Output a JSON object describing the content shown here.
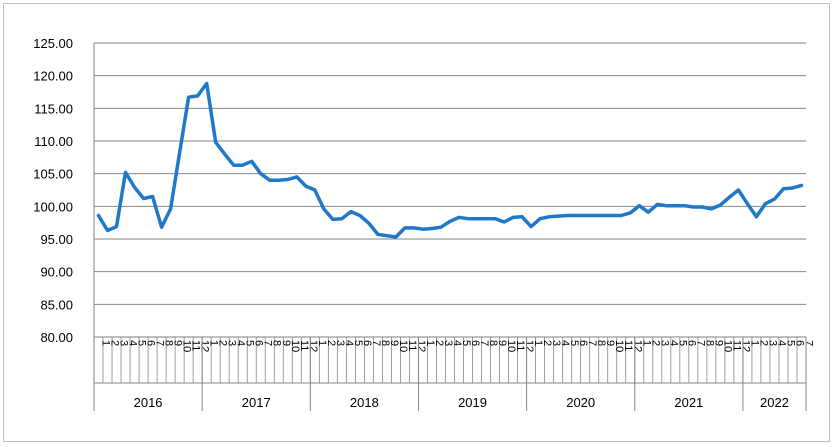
{
  "chart_data": {
    "type": "line",
    "title": "",
    "xlabel": "",
    "ylabel": "",
    "ylim": [
      80,
      125
    ],
    "yticks": [
      "80.00",
      "85.00",
      "90.00",
      "95.00",
      "100.00",
      "105.00",
      "110.00",
      "115.00",
      "120.00",
      "125.00"
    ],
    "grid": true,
    "legend": "none",
    "years": [
      {
        "label": "2016",
        "months": 12
      },
      {
        "label": "2017",
        "months": 12
      },
      {
        "label": "2018",
        "months": 12
      },
      {
        "label": "2019",
        "months": 12
      },
      {
        "label": "2020",
        "months": 12
      },
      {
        "label": "2021",
        "months": 12
      },
      {
        "label": "2022",
        "months": 7
      }
    ],
    "month_labels": [
      "1",
      "2",
      "3",
      "4",
      "5",
      "6",
      "7",
      "8",
      "9",
      "10",
      "11",
      "12"
    ],
    "series": [
      {
        "color": "#1f78c8",
        "values": [
          98.6,
          96.3,
          96.9,
          105.2,
          102.9,
          101.2,
          101.5,
          96.8,
          99.6,
          108.2,
          116.7,
          116.9,
          118.8,
          109.8,
          108.0,
          106.3,
          106.3,
          106.9,
          105.0,
          104.0,
          104.0,
          104.1,
          104.5,
          103.1,
          102.5,
          99.6,
          98.0,
          98.1,
          99.2,
          98.6,
          97.4,
          95.7,
          95.5,
          95.3,
          96.7,
          96.7,
          96.5,
          96.6,
          96.8,
          97.7,
          98.3,
          98.1,
          98.1,
          98.1,
          98.1,
          97.6,
          98.3,
          98.4,
          96.9,
          98.1,
          98.4,
          98.5,
          98.6,
          98.6,
          98.6,
          98.6,
          98.6,
          98.6,
          98.6,
          99.0,
          100.1,
          99.1,
          100.3,
          100.1,
          100.1,
          100.1,
          99.9,
          99.9,
          99.6,
          100.2,
          101.4,
          102.5,
          100.4,
          98.4,
          100.4,
          101.1,
          102.7,
          102.8,
          103.2
        ]
      }
    ]
  }
}
